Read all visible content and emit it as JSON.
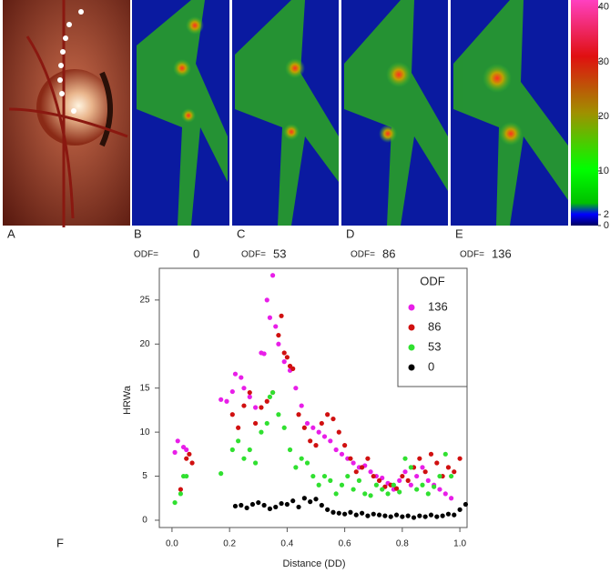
{
  "panels": [
    {
      "letter": "A"
    },
    {
      "letter": "B",
      "odf_label": "ODF=",
      "odf": "0"
    },
    {
      "letter": "C",
      "odf_label": "ODF=",
      "odf": "53"
    },
    {
      "letter": "D",
      "odf_label": "ODF=",
      "odf": "86"
    },
    {
      "letter": "E",
      "odf_label": "ODF=",
      "odf": "136"
    }
  ],
  "colorbar": {
    "lim": [
      0,
      41.3
    ],
    "ticks": [
      0,
      2,
      10,
      20,
      30,
      40
    ]
  },
  "chart_data": {
    "type": "scatter",
    "panel_label": "F",
    "x_label": "Distance (DD)",
    "y_label": "HRWa",
    "legend_title": "ODF",
    "legend": "top-right",
    "xlim": [
      -0.044,
      1.025
    ],
    "ylim": [
      -0.83,
      28.6
    ],
    "xticks": [
      {
        "value": 0,
        "label": "0.0"
      },
      0.2,
      0.4,
      0.6,
      0.8,
      {
        "value": 1,
        "label": "1.0"
      }
    ],
    "yticks": [
      0,
      5,
      10,
      15,
      20,
      25
    ],
    "series": [
      {
        "name": "136",
        "color": "#e81ee8",
        "x": [
          0.01,
          0.02,
          0.04,
          0.05,
          0.17,
          0.19,
          0.21,
          0.22,
          0.24,
          0.25,
          0.27,
          0.29,
          0.31,
          0.32,
          0.33,
          0.34,
          0.35,
          0.36,
          0.37,
          0.39,
          0.41,
          0.43,
          0.45,
          0.47,
          0.49,
          0.51,
          0.53,
          0.55,
          0.57,
          0.59,
          0.61,
          0.63,
          0.65,
          0.67,
          0.69,
          0.71,
          0.73,
          0.75,
          0.77,
          0.79,
          0.81,
          0.83,
          0.85,
          0.87,
          0.89,
          0.91,
          0.93,
          0.95,
          0.97
        ],
        "values": [
          7.7,
          9,
          8.3,
          8,
          13.7,
          13.5,
          14.6,
          16.6,
          16.2,
          15,
          14,
          12.8,
          19,
          18.9,
          25,
          23,
          27.8,
          22,
          20,
          18,
          17,
          15,
          13,
          11,
          10.5,
          10,
          9.5,
          9,
          8,
          7.5,
          7,
          6.5,
          6,
          6.2,
          5.5,
          5,
          4.8,
          4.2,
          3.5,
          4.5,
          5.5,
          4,
          5,
          6,
          4.5,
          4,
          3.5,
          3,
          2.5
        ]
      },
      {
        "name": "86",
        "color": "#d01010",
        "x": [
          0.03,
          0.05,
          0.06,
          0.07,
          0.21,
          0.23,
          0.25,
          0.27,
          0.29,
          0.31,
          0.33,
          0.35,
          0.37,
          0.38,
          0.39,
          0.4,
          0.41,
          0.42,
          0.44,
          0.46,
          0.48,
          0.5,
          0.52,
          0.54,
          0.56,
          0.58,
          0.6,
          0.62,
          0.64,
          0.66,
          0.68,
          0.7,
          0.72,
          0.74,
          0.76,
          0.78,
          0.8,
          0.82,
          0.84,
          0.86,
          0.88,
          0.9,
          0.92,
          0.94,
          0.96,
          0.98,
          1.0
        ],
        "values": [
          3.5,
          7,
          7.5,
          6.5,
          12,
          10.5,
          13,
          14.5,
          11,
          12.8,
          13.5,
          14.5,
          21,
          23.2,
          19,
          18.5,
          17.5,
          17.2,
          12,
          10.5,
          9,
          8.5,
          11,
          12,
          11.5,
          10,
          8.5,
          7,
          5.5,
          6,
          7,
          5,
          4.5,
          3.8,
          4,
          3.6,
          5,
          4.5,
          6,
          7,
          5.5,
          7.5,
          6.5,
          5,
          6,
          5.5,
          7
        ]
      },
      {
        "name": "53",
        "color": "#30e030",
        "x": [
          0.01,
          0.03,
          0.04,
          0.05,
          0.17,
          0.21,
          0.23,
          0.25,
          0.27,
          0.29,
          0.31,
          0.33,
          0.34,
          0.35,
          0.37,
          0.39,
          0.41,
          0.43,
          0.45,
          0.47,
          0.49,
          0.51,
          0.53,
          0.55,
          0.57,
          0.59,
          0.61,
          0.63,
          0.65,
          0.67,
          0.69,
          0.71,
          0.73,
          0.75,
          0.77,
          0.79,
          0.81,
          0.83,
          0.85,
          0.87,
          0.89,
          0.91,
          0.93,
          0.95,
          0.97
        ],
        "values": [
          2,
          3,
          5,
          5,
          5.3,
          8,
          9,
          7,
          8,
          6.5,
          10,
          11,
          14,
          14.5,
          12,
          10.5,
          8,
          6,
          7,
          6.5,
          5,
          4,
          5,
          4.5,
          3,
          4,
          5,
          3.5,
          4.5,
          3,
          2.8,
          4,
          3.5,
          3,
          4,
          3.2,
          7,
          6,
          3.5,
          4,
          3,
          3.8,
          5,
          7.5,
          5
        ]
      },
      {
        "name": "0",
        "color": "#000000",
        "x": [
          0.22,
          0.24,
          0.26,
          0.28,
          0.3,
          0.32,
          0.34,
          0.36,
          0.38,
          0.4,
          0.42,
          0.44,
          0.46,
          0.48,
          0.5,
          0.52,
          0.54,
          0.56,
          0.58,
          0.6,
          0.62,
          0.64,
          0.66,
          0.68,
          0.7,
          0.72,
          0.74,
          0.76,
          0.78,
          0.8,
          0.82,
          0.84,
          0.86,
          0.88,
          0.9,
          0.92,
          0.94,
          0.96,
          0.98,
          1.0,
          1.02
        ],
        "values": [
          1.6,
          1.7,
          1.4,
          1.8,
          2,
          1.7,
          1.3,
          1.5,
          1.9,
          1.8,
          2.2,
          1.5,
          2.5,
          2.1,
          2.4,
          1.7,
          1.2,
          0.9,
          0.8,
          0.7,
          0.9,
          0.6,
          0.8,
          0.5,
          0.7,
          0.6,
          0.5,
          0.4,
          0.6,
          0.4,
          0.5,
          0.3,
          0.5,
          0.4,
          0.6,
          0.4,
          0.5,
          0.7,
          0.6,
          1.2,
          1.8
        ]
      }
    ]
  }
}
